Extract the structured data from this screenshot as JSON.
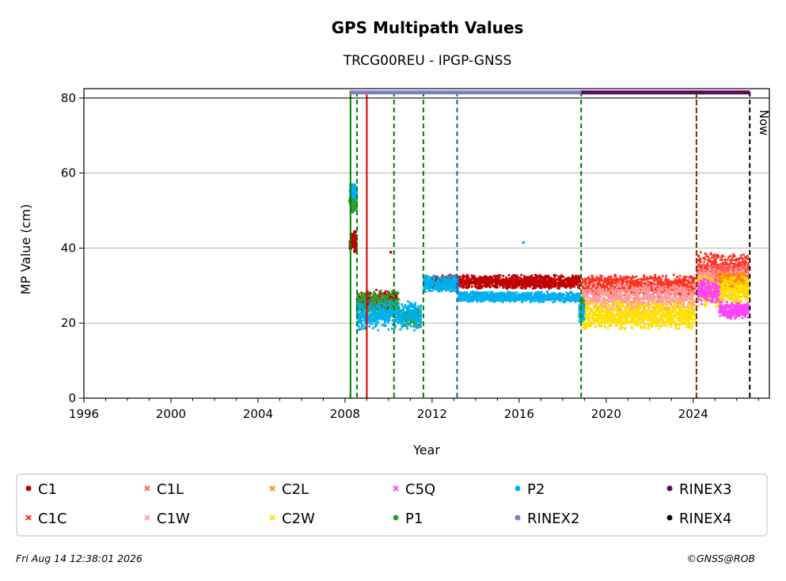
{
  "title": "GPS Multipath Values",
  "subtitle": "TRCG00REU - IPGP-GNSS",
  "footer": {
    "timestamp": "Fri Aug 14 12:38:01 2026",
    "credit": "©GNSS@ROB"
  },
  "chart_data": {
    "type": "scatter",
    "xlabel": "Year",
    "ylabel": "MP Value (cm)",
    "xlim": [
      1996,
      2027.5
    ],
    "ylim": [
      0,
      82.5
    ],
    "x_ticks": [
      "1996",
      "2000",
      "2004",
      "2008",
      "2012",
      "2016",
      "2020",
      "2024"
    ],
    "y_ticks": [
      "0",
      "20",
      "40",
      "60",
      "80"
    ],
    "grid": "horizontal",
    "now_label": "Now",
    "now_year": 2026.6,
    "event_lines": [
      {
        "x": 2008.25,
        "color": "#008000",
        "style": "solid"
      },
      {
        "x": 2008.55,
        "color": "#008000",
        "style": "dashed"
      },
      {
        "x": 2009.0,
        "color": "#cc0000",
        "style": "solid"
      },
      {
        "x": 2010.25,
        "color": "#008000",
        "style": "dashed"
      },
      {
        "x": 2011.6,
        "color": "#008000",
        "style": "dashed"
      },
      {
        "x": 2013.15,
        "color": "#1060c0",
        "style": "dashed"
      },
      {
        "x": 2018.85,
        "color": "#008000",
        "style": "dashed"
      },
      {
        "x": 2024.15,
        "color": "#008000",
        "style": "dashed"
      },
      {
        "x": 2024.15,
        "color": "#cc0000",
        "style": "dotted"
      },
      {
        "x": 2026.6,
        "color": "#000000",
        "style": "dashed"
      }
    ],
    "rinex_bars": [
      {
        "series": "RINEX2",
        "start": 2008.2,
        "end": 2018.85,
        "y": 81.5,
        "color": "#7b7fc0"
      },
      {
        "series": "RINEX3",
        "start": 2018.85,
        "end": 2026.6,
        "y": 81.5,
        "color": "#5c0a5c"
      }
    ],
    "series": [
      {
        "name": "C1",
        "color": "#c00000",
        "marker": "dot",
        "segments": [
          {
            "x": [
              2008.25,
              2008.5
            ],
            "y": [
              38,
              45
            ],
            "s": 2.5
          },
          {
            "x": [
              2008.55,
              2010.4
            ],
            "y": [
              23,
              29
            ],
            "s": 1.5
          },
          {
            "x": [
              2011.9,
              2018.8
            ],
            "y": [
              29,
              33
            ],
            "s": 1.5
          }
        ]
      },
      {
        "name": "C1C",
        "color": "#ff3020",
        "marker": "x",
        "segments": [
          {
            "x": [
              2018.9,
              2024.1
            ],
            "y": [
              27,
              33
            ],
            "s": 1.5
          },
          {
            "x": [
              2024.2,
              2026.55
            ],
            "y": [
              30,
              39
            ],
            "s": 1.5
          }
        ]
      },
      {
        "name": "C1L",
        "color": "#ff6060",
        "marker": "x",
        "segments": [
          {
            "x": [
              2024.2,
              2026.55
            ],
            "y": [
              29,
              36
            ],
            "s": 1.5
          }
        ]
      },
      {
        "name": "C1W",
        "color": "#ff9a9a",
        "marker": "x",
        "segments": [
          {
            "x": [
              2018.9,
              2024.1
            ],
            "y": [
              22,
              31
            ],
            "s": 1.5
          },
          {
            "x": [
              2024.2,
              2026.55
            ],
            "y": [
              26,
              35
            ],
            "s": 1.5
          }
        ]
      },
      {
        "name": "C2L",
        "color": "#ff8c00",
        "marker": "x",
        "segments": [
          {
            "x": [
              2025.0,
              2026.55
            ],
            "y": [
              28,
              34
            ],
            "s": 1.5
          }
        ]
      },
      {
        "name": "C2W",
        "color": "#ffe000",
        "marker": "x",
        "segments": [
          {
            "x": [
              2018.9,
              2024.1
            ],
            "y": [
              18,
              26
            ],
            "s": 1.5
          },
          {
            "x": [
              2024.2,
              2026.55
            ],
            "y": [
              24,
              33
            ],
            "s": 1.5
          }
        ]
      },
      {
        "name": "C5Q",
        "color": "#ff40ff",
        "marker": "x",
        "segments": [
          {
            "x": [
              2024.2,
              2025.2
            ],
            "y": [
              25,
              32
            ],
            "s": 1.5
          },
          {
            "x": [
              2025.2,
              2026.55
            ],
            "y": [
              21,
              26
            ],
            "s": 1.5
          }
        ]
      },
      {
        "name": "P1",
        "color": "#2ca02c",
        "marker": "dot",
        "segments": [
          {
            "x": [
              2008.25,
              2008.5
            ],
            "y": [
              49,
              56
            ],
            "s": 2.5
          },
          {
            "x": [
              2008.55,
              2010.5
            ],
            "y": [
              21,
              29
            ],
            "s": 1.5
          },
          {
            "x": [
              2010.5,
              2011.5
            ],
            "y": [
              19,
              24
            ],
            "s": 1.5
          },
          {
            "x": [
              2018.8,
              2018.95
            ],
            "y": [
              21,
              27
            ],
            "s": 2.5
          }
        ]
      },
      {
        "name": "P2",
        "color": "#00b0f0",
        "marker": "dot",
        "segments": [
          {
            "x": [
              2008.25,
              2008.5
            ],
            "y": [
              53,
              58
            ],
            "s": 2.5
          },
          {
            "x": [
              2008.55,
              2011.5
            ],
            "y": [
              18,
              26
            ],
            "s": 1.5
          },
          {
            "x": [
              2011.6,
              2013.2
            ],
            "y": [
              28,
              33
            ],
            "s": 1.5
          },
          {
            "x": [
              2013.2,
              2018.8
            ],
            "y": [
              25.5,
              28.5
            ],
            "s": 1.5
          },
          {
            "x": [
              2018.8,
              2018.95
            ],
            "y": [
              20,
              25
            ],
            "s": 2.5
          }
        ]
      },
      {
        "name": "RINEX2",
        "color": "#7b7fc0",
        "marker": "dot",
        "segments": []
      },
      {
        "name": "RINEX3",
        "color": "#5c0a5c",
        "marker": "dot",
        "segments": []
      },
      {
        "name": "RINEX4",
        "color": "#1a001a",
        "marker": "dot",
        "segments": []
      }
    ],
    "outliers": [
      {
        "series": "P2",
        "x": 2016.2,
        "y": 41.5
      },
      {
        "series": "C1",
        "x": 2010.1,
        "y": 38.9
      },
      {
        "series": "P1",
        "x": 2008.2,
        "y": 52.5
      }
    ],
    "legend": {
      "placement": "below",
      "rows": [
        [
          "C1",
          "C1L",
          "C2L",
          "C5Q",
          "P2",
          "RINEX3"
        ],
        [
          "C1C",
          "C1W",
          "C2W",
          "P1",
          "RINEX2",
          "RINEX4"
        ]
      ]
    }
  }
}
